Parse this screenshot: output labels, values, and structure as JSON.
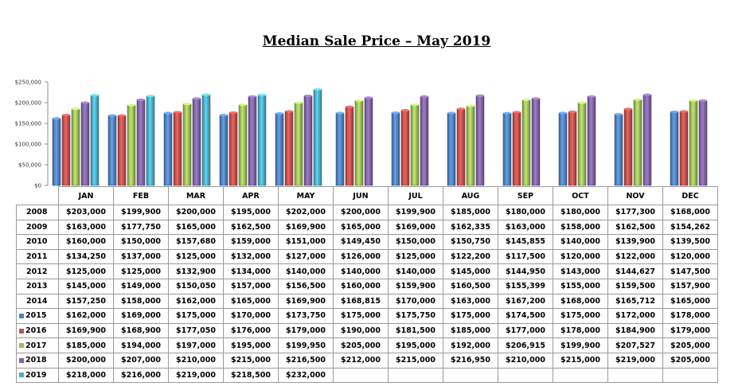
{
  "colors": {
    "2015": "#4f81bd",
    "2016": "#c0504d",
    "2017": "#9bbb59",
    "2018": "#8064a2",
    "2019": "#4bacc6"
  },
  "chart_data": {
    "type": "bar",
    "title": "Median Sale Price – May 2019",
    "y_ticks": [
      "$0",
      "$50,000",
      "$100,000",
      "$150,000",
      "$200,000",
      "$250,000"
    ],
    "ylim": [
      0,
      250000
    ],
    "grid": false,
    "legend": "table",
    "categories": [
      "JAN",
      "FEB",
      "MAR",
      "APR",
      "MAY",
      "JUN",
      "JUL",
      "AUG",
      "SEP",
      "OCT",
      "NOV",
      "DEC"
    ],
    "series": [
      {
        "name": "2008",
        "in_chart": false,
        "values": [
          "$203,000",
          "$199,900",
          "$200,000",
          "$195,000",
          "$202,000",
          "$200,000",
          "$199,900",
          "$185,000",
          "$180,000",
          "$180,000",
          "$177,300",
          "$168,000"
        ]
      },
      {
        "name": "2009",
        "in_chart": false,
        "values": [
          "$163,000",
          "$177,750",
          "$165,000",
          "$162,500",
          "$169,900",
          "$165,000",
          "$169,000",
          "$162,335",
          "$163,000",
          "$158,000",
          "$162,500",
          "$154,262"
        ]
      },
      {
        "name": "2010",
        "in_chart": false,
        "values": [
          "$160,000",
          "$150,000",
          "$157,680",
          "$159,000",
          "$151,000",
          "$149,450",
          "$150,000",
          "$150,750",
          "$145,855",
          "$140,000",
          "$139,900",
          "$139,500"
        ]
      },
      {
        "name": "2011",
        "in_chart": false,
        "values": [
          "$134,250",
          "$137,000",
          "$125,000",
          "$132,000",
          "$127,000",
          "$126,000",
          "$125,000",
          "$122,200",
          "$117,500",
          "$120,000",
          "$122,000",
          "$120,000"
        ]
      },
      {
        "name": "2012",
        "in_chart": false,
        "values": [
          "$125,000",
          "$125,000",
          "$132,900",
          "$134,000",
          "$140,000",
          "$140,000",
          "$140,000",
          "$145,000",
          "$144,950",
          "$143,000",
          "$144,627",
          "$147,500"
        ]
      },
      {
        "name": "2013",
        "in_chart": false,
        "values": [
          "$145,000",
          "$149,000",
          "$150,050",
          "$157,000",
          "$156,500",
          "$160,000",
          "$159,900",
          "$160,500",
          "$155,399",
          "$155,000",
          "$159,500",
          "$157,900"
        ]
      },
      {
        "name": "2014",
        "in_chart": false,
        "values": [
          "$157,250",
          "$158,000",
          "$162,000",
          "$165,000",
          "$169,900",
          "$168,815",
          "$170,000",
          "$163,000",
          "$167,200",
          "$168,000",
          "$165,712",
          "$165,000"
        ]
      },
      {
        "name": "2015",
        "in_chart": true,
        "values": [
          "$162,000",
          "$169,000",
          "$175,000",
          "$170,000",
          "$173,750",
          "$175,000",
          "$175,750",
          "$175,000",
          "$174,500",
          "$175,000",
          "$172,000",
          "$178,000"
        ]
      },
      {
        "name": "2016",
        "in_chart": true,
        "values": [
          "$169,900",
          "$168,900",
          "$177,050",
          "$176,000",
          "$179,000",
          "$190,000",
          "$181,500",
          "$185,000",
          "$177,000",
          "$178,000",
          "$184,900",
          "$179,000"
        ]
      },
      {
        "name": "2017",
        "in_chart": true,
        "values": [
          "$185,000",
          "$194,000",
          "$197,000",
          "$195,000",
          "$199,950",
          "$205,000",
          "$195,000",
          "$192,000",
          "$206,915",
          "$199,900",
          "$207,527",
          "$205,000"
        ]
      },
      {
        "name": "2018",
        "in_chart": true,
        "values": [
          "$200,000",
          "$207,000",
          "$210,000",
          "$215,000",
          "$216,500",
          "$212,000",
          "$215,000",
          "$216,950",
          "$210,000",
          "$215,000",
          "$219,000",
          "$205,000"
        ]
      },
      {
        "name": "2019",
        "in_chart": true,
        "values": [
          "$218,000",
          "$216,000",
          "$219,000",
          "$218,500",
          "$232,000",
          "",
          "",
          "",
          "",
          "",
          "",
          ""
        ]
      }
    ]
  }
}
